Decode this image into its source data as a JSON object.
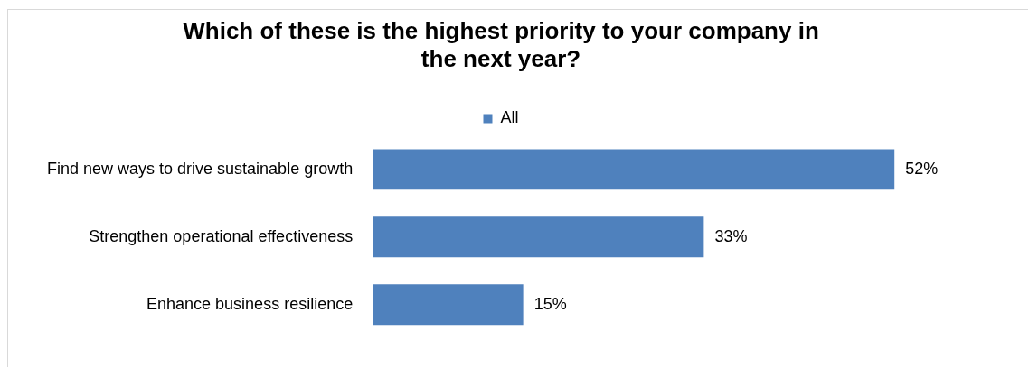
{
  "chart_data": {
    "type": "bar",
    "orientation": "horizontal",
    "title": "Which of these is the highest priority to your company in the next year?",
    "categories": [
      "Find new ways to drive sustainable growth",
      "Strengthen operational effectiveness",
      "Enhance business resilience"
    ],
    "series": [
      {
        "name": "All",
        "color": "#4f81bd",
        "values": [
          52,
          33,
          15
        ],
        "value_labels": [
          "52%",
          "33%",
          "15%"
        ]
      }
    ],
    "tick_labels": "y",
    "legend": "top"
  }
}
